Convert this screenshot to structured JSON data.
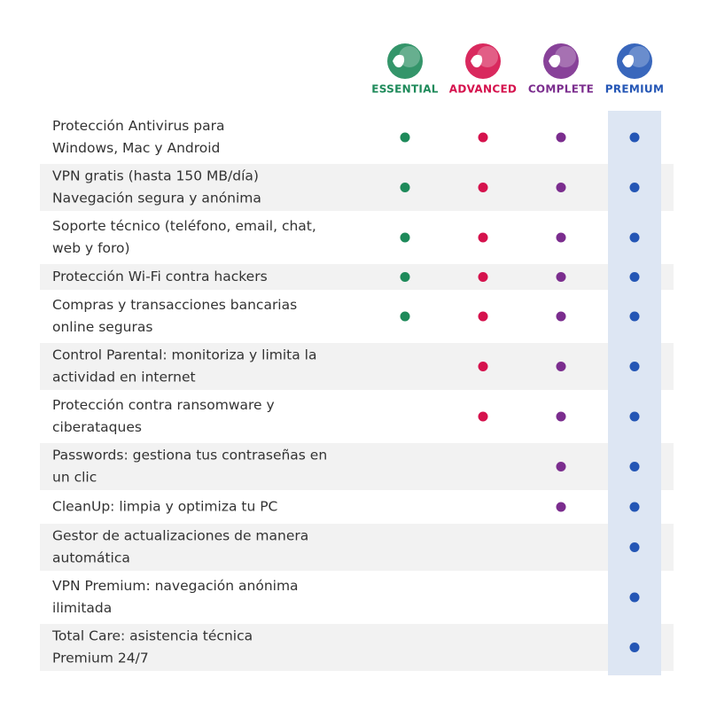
{
  "plans": [
    {
      "name": "ESSENTIAL",
      "color": "#1e8a5a"
    },
    {
      "name": "ADVANCED",
      "color": "#d5124d"
    },
    {
      "name": "COMPLETE",
      "color": "#7b2d8e"
    },
    {
      "name": "PREMIUM",
      "color": "#2456b5"
    }
  ],
  "features": [
    {
      "lines": [
        "Protección Antivirus para",
        "Windows, Mac y Android"
      ],
      "included": [
        true,
        true,
        true,
        true
      ]
    },
    {
      "lines": [
        "VPN gratis (hasta 150 MB/día)",
        "Navegación segura y anónima"
      ],
      "included": [
        true,
        true,
        true,
        true
      ]
    },
    {
      "lines": [
        "Soporte técnico (teléfono, email, chat,",
        "web y foro)"
      ],
      "included": [
        true,
        true,
        true,
        true
      ]
    },
    {
      "lines": [
        "Protección Wi-Fi contra hackers"
      ],
      "included": [
        true,
        true,
        true,
        true
      ]
    },
    {
      "lines": [
        "Compras y transacciones bancarias",
        "online seguras"
      ],
      "included": [
        true,
        true,
        true,
        true
      ]
    },
    {
      "lines": [
        "Control Parental: monitoriza y limita la",
        "actividad en internet"
      ],
      "included": [
        false,
        true,
        true,
        true
      ]
    },
    {
      "lines": [
        "Protección contra ransomware y",
        "ciberataques"
      ],
      "included": [
        false,
        true,
        true,
        true
      ]
    },
    {
      "lines": [
        "Passwords: gestiona tus contraseñas en",
        "un clic"
      ],
      "included": [
        false,
        false,
        true,
        true
      ]
    },
    {
      "lines": [
        "CleanUp: limpia y optimiza tu PC"
      ],
      "included": [
        false,
        false,
        true,
        true
      ]
    },
    {
      "lines": [
        "Gestor de actualizaciones de manera",
        "automática"
      ],
      "included": [
        false,
        false,
        false,
        true
      ]
    },
    {
      "lines": [
        "VPN Premium: navegación anónima",
        "ilimitada"
      ],
      "included": [
        false,
        false,
        false,
        true
      ]
    },
    {
      "lines": [
        "Total Care: asistencia técnica",
        "Premium 24/7"
      ],
      "included": [
        false,
        false,
        false,
        true
      ]
    }
  ]
}
